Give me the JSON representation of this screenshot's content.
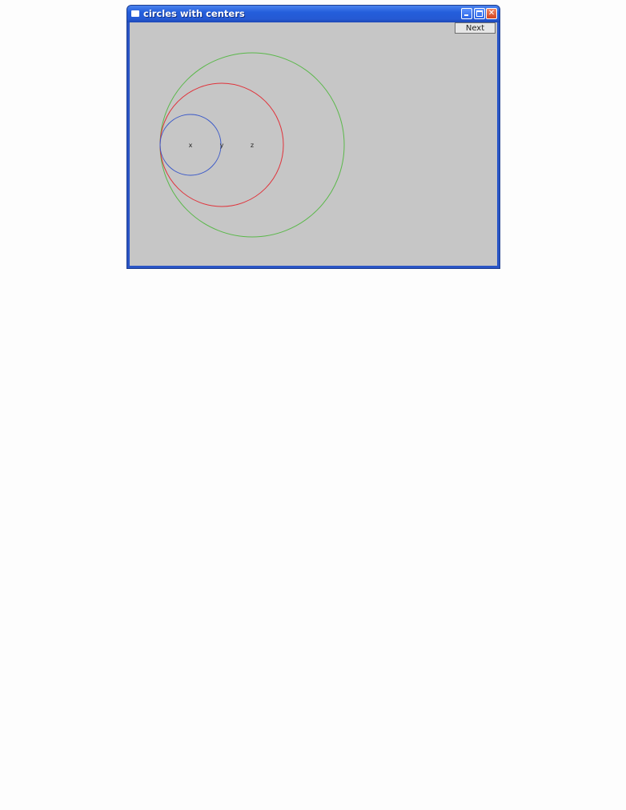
{
  "window": {
    "title": "circles with centers",
    "buttons": {
      "next_label": "Next"
    }
  },
  "icons": {
    "app": "window-app-icon",
    "minimize": "minimize-icon",
    "maximize": "maximize-icon",
    "close": "close-icon"
  },
  "colors": {
    "titlebar": "#245edb",
    "client_background": "#c6c6c6",
    "circle_x": "#3b59c8",
    "circle_y": "#e0323a",
    "circle_z": "#5ab84a"
  },
  "centers": {
    "x": {
      "label": "x"
    },
    "y": {
      "label": "y"
    },
    "z": {
      "label": "z"
    }
  }
}
